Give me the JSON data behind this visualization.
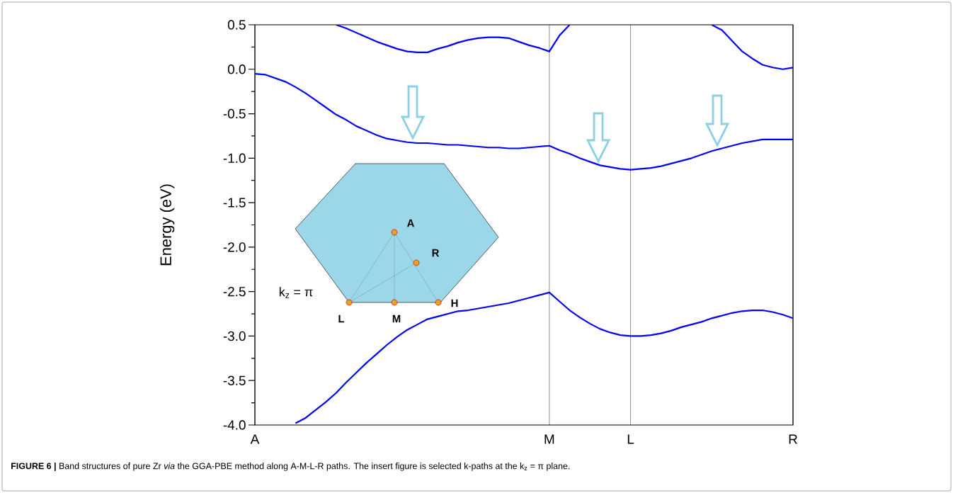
{
  "chart_data": {
    "type": "line",
    "ylabel": "Energy (eV)",
    "categories": [
      "A",
      null,
      null,
      null,
      null,
      null,
      null,
      null,
      null,
      null,
      null,
      null,
      null,
      null,
      null,
      null,
      null,
      null,
      null,
      null,
      null,
      null,
      null,
      null,
      null,
      null,
      null,
      null,
      null,
      "M",
      null,
      null,
      null,
      null,
      null,
      null,
      null,
      "L",
      null,
      null,
      null,
      null,
      null,
      null,
      null,
      null,
      null,
      null,
      null,
      null,
      null,
      null,
      null,
      "R"
    ],
    "ylim": [
      -4.0,
      0.5
    ],
    "yticks": [
      {
        "value": 0.5,
        "label": "0.5"
      },
      {
        "value": 0.25,
        "label": null
      },
      {
        "value": 0,
        "label": "0.0"
      },
      {
        "value": -0.25,
        "label": null
      },
      {
        "value": -0.5,
        "label": "-0.5"
      },
      {
        "value": -0.75,
        "label": null
      },
      {
        "value": -1.0,
        "label": "-1.0"
      },
      {
        "value": -1.25,
        "label": null
      },
      {
        "value": -1.5,
        "label": "-1.5"
      },
      {
        "value": -1.75,
        "label": null
      },
      {
        "value": -2.0,
        "label": "-2.0"
      },
      {
        "value": -2.25,
        "label": null
      },
      {
        "value": -2.5,
        "label": "-2.5"
      },
      {
        "value": -2.75,
        "label": null
      },
      {
        "value": -3.0,
        "label": "-3.0"
      },
      {
        "value": -3.25,
        "label": null
      },
      {
        "value": -3.5,
        "label": "-3.5"
      },
      {
        "value": -3.75,
        "label": null
      },
      {
        "value": -4.0,
        "label": "-4.0"
      }
    ],
    "series": [
      {
        "color": "#0000ff",
        "values": [
          null,
          null,
          null,
          null,
          null,
          null,
          null,
          null,
          0.5,
          0.46,
          0.41,
          0.36,
          0.31,
          0.27,
          0.23,
          0.2,
          0.19,
          0.19,
          0.23,
          0.26,
          0.3,
          0.33,
          0.35,
          0.36,
          0.36,
          0.35,
          0.31,
          0.27,
          0.24,
          0.2,
          0.38,
          0.5,
          null,
          null,
          null,
          null,
          null,
          null,
          null,
          null,
          null,
          null,
          null,
          null,
          null,
          null,
          null,
          null,
          null,
          null,
          null,
          null,
          null,
          null
        ]
      },
      {
        "color": "#0000ff",
        "values": [
          null,
          null,
          null,
          null,
          null,
          null,
          null,
          null,
          null,
          null,
          null,
          null,
          null,
          null,
          null,
          null,
          null,
          null,
          null,
          null,
          null,
          null,
          null,
          null,
          null,
          null,
          null,
          null,
          null,
          null,
          null,
          null,
          null,
          null,
          null,
          null,
          null,
          null,
          null,
          null,
          null,
          null,
          null,
          null,
          null,
          0.5,
          0.44,
          0.32,
          0.2,
          0.12,
          0.05,
          0.02,
          0.0,
          0.02
        ]
      },
      {
        "color": "#0000ff",
        "values": [
          -0.05,
          -0.06,
          -0.1,
          -0.14,
          -0.2,
          -0.27,
          -0.35,
          -0.43,
          -0.51,
          -0.57,
          -0.64,
          -0.69,
          -0.74,
          -0.78,
          -0.8,
          -0.82,
          -0.83,
          -0.83,
          -0.84,
          -0.85,
          -0.85,
          -0.86,
          -0.87,
          -0.88,
          -0.88,
          -0.89,
          -0.89,
          -0.88,
          -0.87,
          -0.86,
          -0.91,
          -0.95,
          -1.0,
          -1.04,
          -1.08,
          -1.1,
          -1.12,
          -1.13,
          -1.12,
          -1.11,
          -1.09,
          -1.06,
          -1.03,
          -1.0,
          -0.96,
          -0.92,
          -0.89,
          -0.86,
          -0.83,
          -0.81,
          -0.79,
          -0.79,
          -0.79,
          -0.79
        ]
      },
      {
        "color": "#0000ff",
        "values": [
          null,
          null,
          null,
          null,
          -3.98,
          -3.92,
          -3.83,
          -3.74,
          -3.64,
          -3.52,
          -3.41,
          -3.3,
          -3.2,
          -3.1,
          -3.01,
          -2.93,
          -2.87,
          -2.81,
          -2.78,
          -2.75,
          -2.72,
          -2.71,
          -2.69,
          -2.67,
          -2.65,
          -2.63,
          -2.6,
          -2.57,
          -2.54,
          -2.51,
          -2.61,
          -2.71,
          -2.79,
          -2.86,
          -2.92,
          -2.96,
          -2.99,
          -3.0,
          -3.0,
          -2.99,
          -2.97,
          -2.94,
          -2.9,
          -2.87,
          -2.84,
          -2.8,
          -2.77,
          -2.74,
          -2.72,
          -2.71,
          -2.71,
          -2.73,
          -2.76,
          -2.8
        ]
      }
    ],
    "grid": "x",
    "annotations": [
      "**FIGURE 6 |** Band structures of pure Zr *via* the GGA-PBE method along A-M-L-R paths. The insert figure is selected k-paths at the k$_{z}$ = π plane.",
      "A",
      "R",
      "L",
      "M",
      "H",
      "k$_{z}$ = π"
    ]
  }
}
